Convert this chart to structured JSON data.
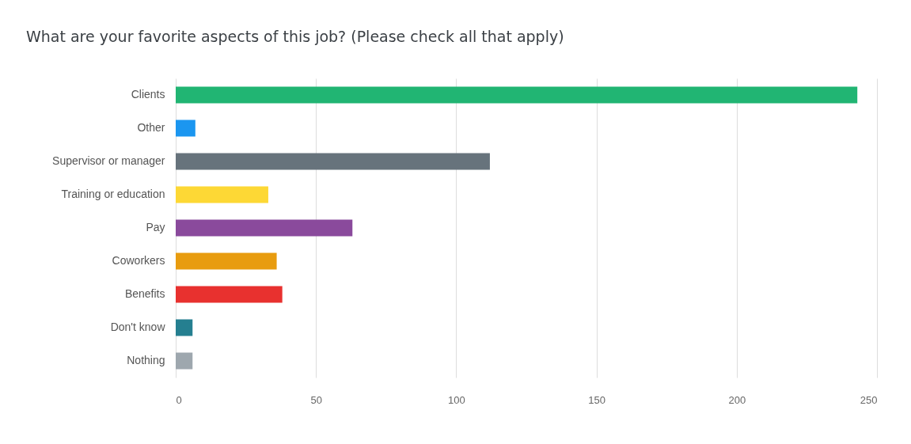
{
  "chart_data": {
    "type": "bar",
    "orientation": "horizontal",
    "title": "What are your favorite aspects of this job? (Please check all that apply)",
    "categories": [
      "Clients",
      "Other",
      "Supervisor or manager",
      "Training or education",
      "Pay",
      "Coworkers",
      "Benefits",
      "Don't know",
      "Nothing"
    ],
    "values": [
      243,
      7,
      112,
      33,
      63,
      36,
      38,
      6,
      6
    ],
    "colors": [
      "#21b573",
      "#1b96f0",
      "#67737c",
      "#fdd835",
      "#8a4a9c",
      "#e89c0f",
      "#e8312f",
      "#257f90",
      "#9ea7ae"
    ],
    "xlim": [
      0,
      250
    ],
    "xticks": [
      0,
      50,
      100,
      150,
      200,
      250
    ],
    "grid": "x"
  }
}
